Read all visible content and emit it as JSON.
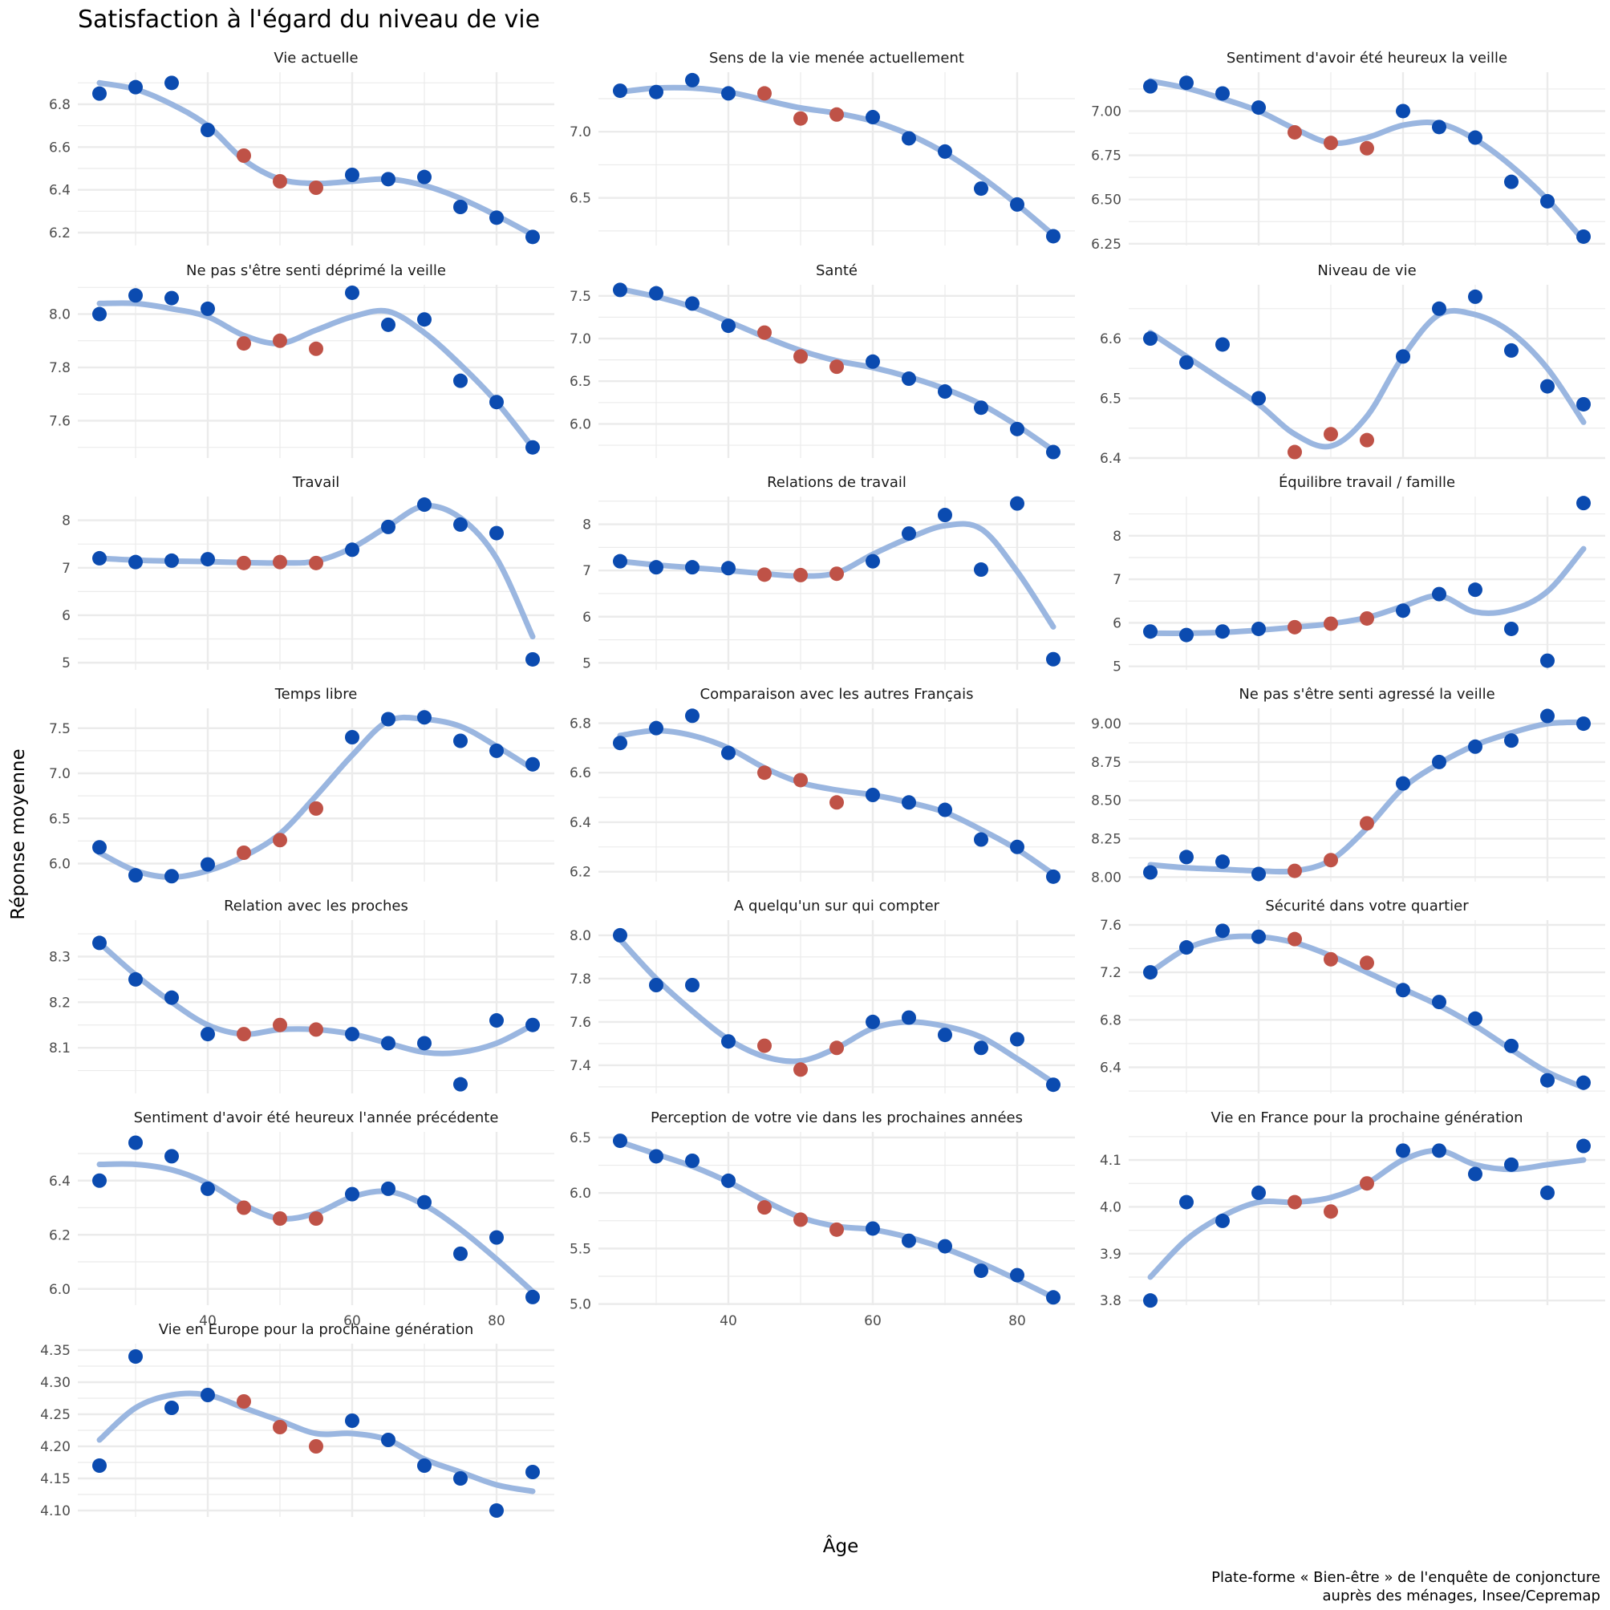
{
  "title": "Satisfaction à l'égard du niveau de vie",
  "caption_lines": [
    "Plate-forme « Bien-être » de l'enquête de conjoncture",
    "auprès des ménages, Insee/Cepremap"
  ],
  "colors": {
    "point_default": "#0B4BB0",
    "point_highlight": "#BF5247",
    "smooth": "#9AB6E0",
    "grid": "#EBEBEB"
  },
  "chart_data": {
    "type": "scatter",
    "xlabel": "Âge",
    "ylabel": "Réponse moyenne",
    "x": [
      25,
      30,
      35,
      40,
      45,
      50,
      55,
      60,
      65,
      70,
      75,
      80,
      85
    ],
    "xlim": [
      22,
      88
    ],
    "x_ticks": [
      40,
      60,
      80
    ],
    "x_tick_labels": [
      "40",
      "60",
      "80"
    ],
    "highlight_x": [
      45,
      50,
      55
    ],
    "grid": true,
    "panels": [
      {
        "title": "Vie actuelle",
        "values": [
          6.85,
          6.88,
          6.9,
          6.68,
          6.56,
          6.44,
          6.41,
          6.47,
          6.45,
          6.46,
          6.32,
          6.27,
          6.18
        ],
        "smooth": [
          6.9,
          6.87,
          6.8,
          6.7,
          6.54,
          6.45,
          6.43,
          6.44,
          6.45,
          6.42,
          6.36,
          6.28,
          6.19
        ],
        "ylim": [
          6.14,
          6.95
        ],
        "ticks": [
          6.2,
          6.4,
          6.6,
          6.8
        ],
        "tick_labels": [
          "6.2",
          "6.4",
          "6.6",
          "6.8"
        ]
      },
      {
        "title": "Sens de la vie menée actuellement",
        "values": [
          7.31,
          7.3,
          7.39,
          7.29,
          7.29,
          7.1,
          7.13,
          7.11,
          6.95,
          6.85,
          6.57,
          6.45,
          6.21
        ],
        "smooth": [
          7.3,
          7.33,
          7.33,
          7.3,
          7.24,
          7.18,
          7.14,
          7.08,
          6.98,
          6.84,
          6.66,
          6.45,
          6.22
        ],
        "ylim": [
          6.14,
          7.45
        ],
        "ticks": [
          6.5,
          7.0
        ],
        "tick_labels": [
          "6.5",
          "7.0"
        ]
      },
      {
        "title": "Sentiment d'avoir été heureux la veille",
        "values": [
          7.14,
          7.16,
          7.1,
          7.02,
          6.88,
          6.82,
          6.79,
          7.0,
          6.91,
          6.85,
          6.6,
          6.49,
          6.29
        ],
        "smooth": [
          7.17,
          7.13,
          7.07,
          7.0,
          6.9,
          6.82,
          6.85,
          6.92,
          6.93,
          6.84,
          6.69,
          6.5,
          6.27
        ],
        "ylim": [
          6.24,
          7.22
        ],
        "ticks": [
          6.25,
          6.5,
          6.75,
          7.0
        ],
        "tick_labels": [
          "6.25",
          "6.50",
          "6.75",
          "7.00"
        ]
      },
      {
        "title": "Ne pas s'être senti déprimé la veille",
        "values": [
          8.0,
          8.07,
          8.06,
          8.02,
          7.89,
          7.9,
          7.87,
          8.08,
          7.96,
          7.98,
          7.75,
          7.67,
          7.5
        ],
        "smooth": [
          8.04,
          8.04,
          8.02,
          7.99,
          7.92,
          7.89,
          7.94,
          7.99,
          8.01,
          7.93,
          7.81,
          7.67,
          7.5
        ],
        "ylim": [
          7.46,
          8.11
        ],
        "ticks": [
          7.6,
          7.8,
          8.0
        ],
        "tick_labels": [
          "7.6",
          "7.8",
          "8.0"
        ]
      },
      {
        "title": "Santé",
        "values": [
          7.57,
          7.53,
          7.41,
          7.15,
          7.07,
          6.79,
          6.67,
          6.73,
          6.53,
          6.38,
          6.19,
          5.94,
          5.67
        ],
        "smooth": [
          7.58,
          7.49,
          7.37,
          7.2,
          7.02,
          6.86,
          6.74,
          6.66,
          6.55,
          6.41,
          6.23,
          5.98,
          5.69
        ],
        "ylim": [
          5.6,
          7.63
        ],
        "ticks": [
          6.0,
          6.5,
          7.0,
          7.5
        ],
        "tick_labels": [
          "6.0",
          "6.5",
          "7.0",
          "7.5"
        ]
      },
      {
        "title": "Niveau de vie",
        "values": [
          6.6,
          6.56,
          6.59,
          6.5,
          6.41,
          6.44,
          6.43,
          6.57,
          6.65,
          6.67,
          6.58,
          6.52,
          6.49
        ],
        "smooth": [
          6.61,
          6.57,
          6.53,
          6.49,
          6.44,
          6.42,
          6.47,
          6.57,
          6.64,
          6.64,
          6.61,
          6.55,
          6.46
        ],
        "ylim": [
          6.4,
          6.69
        ],
        "ticks": [
          6.4,
          6.5,
          6.6
        ],
        "tick_labels": [
          "6.4",
          "6.5",
          "6.6"
        ]
      },
      {
        "title": "Travail",
        "values": [
          7.2,
          7.12,
          7.15,
          7.18,
          7.1,
          7.12,
          7.1,
          7.38,
          7.86,
          8.33,
          7.91,
          7.73,
          5.07
        ],
        "smooth": [
          7.2,
          7.16,
          7.14,
          7.13,
          7.11,
          7.1,
          7.14,
          7.42,
          7.88,
          8.3,
          8.05,
          7.2,
          5.55
        ],
        "ylim": [
          4.85,
          8.5
        ],
        "ticks": [
          5,
          6,
          7,
          8
        ],
        "tick_labels": [
          "5",
          "6",
          "7",
          "8"
        ]
      },
      {
        "title": "Relations de travail",
        "values": [
          7.2,
          7.07,
          7.07,
          7.05,
          6.91,
          6.9,
          6.93,
          7.2,
          7.8,
          8.2,
          7.02,
          8.45,
          5.08
        ],
        "smooth": [
          7.2,
          7.12,
          7.06,
          7.0,
          6.93,
          6.88,
          6.95,
          7.35,
          7.7,
          7.97,
          7.9,
          6.98,
          5.78
        ],
        "ylim": [
          4.85,
          8.6
        ],
        "ticks": [
          5,
          6,
          7,
          8
        ],
        "tick_labels": [
          "5",
          "6",
          "7",
          "8"
        ]
      },
      {
        "title": "Équilibre travail / famille",
        "values": [
          5.8,
          5.72,
          5.8,
          5.86,
          5.9,
          5.98,
          6.1,
          6.28,
          6.66,
          6.76,
          5.86,
          5.13,
          8.75
        ],
        "smooth": [
          5.76,
          5.76,
          5.78,
          5.83,
          5.9,
          5.98,
          6.12,
          6.38,
          6.62,
          6.25,
          6.3,
          6.72,
          7.7
        ],
        "ylim": [
          4.92,
          8.9
        ],
        "ticks": [
          5,
          6,
          7,
          8
        ],
        "tick_labels": [
          "5",
          "6",
          "7",
          "8"
        ]
      },
      {
        "title": "Temps libre",
        "values": [
          6.18,
          5.87,
          5.86,
          5.99,
          6.12,
          6.26,
          6.61,
          7.4,
          7.6,
          7.62,
          7.36,
          7.25,
          7.1
        ],
        "smooth": [
          6.12,
          5.92,
          5.85,
          5.92,
          6.08,
          6.33,
          6.75,
          7.2,
          7.58,
          7.6,
          7.52,
          7.3,
          7.05
        ],
        "ylim": [
          5.8,
          7.72
        ],
        "ticks": [
          6.0,
          6.5,
          7.0,
          7.5
        ],
        "tick_labels": [
          "6.0",
          "6.5",
          "7.0",
          "7.5"
        ]
      },
      {
        "title": "Comparaison avec les autres Français",
        "values": [
          6.72,
          6.78,
          6.83,
          6.68,
          6.6,
          6.57,
          6.48,
          6.51,
          6.48,
          6.45,
          6.33,
          6.3,
          6.18
        ],
        "smooth": [
          6.75,
          6.77,
          6.75,
          6.7,
          6.62,
          6.56,
          6.53,
          6.51,
          6.48,
          6.44,
          6.37,
          6.29,
          6.19
        ],
        "ylim": [
          6.16,
          6.86
        ],
        "ticks": [
          6.2,
          6.4,
          6.6,
          6.8
        ],
        "tick_labels": [
          "6.2",
          "6.4",
          "6.6",
          "6.8"
        ]
      },
      {
        "title": "Ne pas s'être senti agressé la veille",
        "values": [
          8.03,
          8.13,
          8.1,
          8.02,
          8.04,
          8.11,
          8.35,
          8.61,
          8.75,
          8.85,
          8.89,
          9.05,
          9.0
        ],
        "smooth": [
          8.08,
          8.06,
          8.05,
          8.04,
          8.04,
          8.11,
          8.32,
          8.58,
          8.74,
          8.86,
          8.94,
          9.0,
          9.01
        ],
        "ylim": [
          7.97,
          9.1
        ],
        "ticks": [
          8.0,
          8.25,
          8.5,
          8.75,
          9.0
        ],
        "tick_labels": [
          "8.00",
          "8.25",
          "8.50",
          "8.75",
          "9.00"
        ]
      },
      {
        "title": "Relation avec les proches",
        "values": [
          8.33,
          8.25,
          8.21,
          8.13,
          8.13,
          8.15,
          8.14,
          8.13,
          8.11,
          8.11,
          8.02,
          8.16,
          8.15
        ],
        "smooth": [
          8.33,
          8.26,
          8.2,
          8.15,
          8.13,
          8.14,
          8.14,
          8.13,
          8.11,
          8.09,
          8.09,
          8.11,
          8.15
        ],
        "ylim": [
          8.0,
          8.38
        ],
        "ticks": [
          8.1,
          8.2,
          8.3
        ],
        "tick_labels": [
          "8.1",
          "8.2",
          "8.3"
        ]
      },
      {
        "title": "A quelqu'un sur qui compter",
        "values": [
          8.0,
          7.77,
          7.77,
          7.51,
          7.49,
          7.38,
          7.48,
          7.6,
          7.62,
          7.54,
          7.48,
          7.52,
          7.31
        ],
        "smooth": [
          7.98,
          7.8,
          7.65,
          7.52,
          7.44,
          7.42,
          7.48,
          7.57,
          7.6,
          7.58,
          7.53,
          7.43,
          7.32
        ],
        "ylim": [
          7.27,
          8.07
        ],
        "ticks": [
          7.4,
          7.6,
          7.8,
          8.0
        ],
        "tick_labels": [
          "7.4",
          "7.6",
          "7.8",
          "8.0"
        ]
      },
      {
        "title": "Sécurité dans votre quartier",
        "values": [
          7.2,
          7.41,
          7.55,
          7.5,
          7.48,
          7.31,
          7.28,
          7.05,
          6.95,
          6.81,
          6.58,
          6.29,
          6.27
        ],
        "smooth": [
          7.2,
          7.4,
          7.49,
          7.5,
          7.45,
          7.34,
          7.2,
          7.06,
          6.92,
          6.75,
          6.55,
          6.36,
          6.23
        ],
        "ylim": [
          6.18,
          7.64
        ],
        "ticks": [
          6.4,
          6.8,
          7.2,
          7.6
        ],
        "tick_labels": [
          "6.4",
          "6.8",
          "7.2",
          "7.6"
        ]
      },
      {
        "title": "Sentiment d'avoir été heureux l'année précédente",
        "values": [
          6.4,
          6.54,
          6.49,
          6.37,
          6.3,
          6.26,
          6.26,
          6.35,
          6.37,
          6.32,
          6.13,
          6.19,
          5.97
        ],
        "smooth": [
          6.46,
          6.46,
          6.44,
          6.39,
          6.31,
          6.26,
          6.28,
          6.34,
          6.36,
          6.31,
          6.22,
          6.11,
          5.99
        ],
        "ylim": [
          5.94,
          6.58
        ],
        "ticks": [
          6.0,
          6.2,
          6.4
        ],
        "tick_labels": [
          "6.0",
          "6.2",
          "6.4"
        ]
      },
      {
        "title": "Perception de votre vie dans les prochaines années",
        "values": [
          6.47,
          6.33,
          6.29,
          6.11,
          5.87,
          5.76,
          5.67,
          5.68,
          5.57,
          5.52,
          5.3,
          5.26,
          5.06
        ],
        "smooth": [
          6.46,
          6.35,
          6.24,
          6.1,
          5.93,
          5.78,
          5.7,
          5.67,
          5.6,
          5.5,
          5.37,
          5.22,
          5.06
        ],
        "ylim": [
          4.99,
          6.55
        ],
        "ticks": [
          5.0,
          5.5,
          6.0,
          6.5
        ],
        "tick_labels": [
          "5.0",
          "5.5",
          "6.0",
          "6.5"
        ]
      },
      {
        "title": "Vie en France pour la prochaine génération",
        "values": [
          3.8,
          4.01,
          3.97,
          4.03,
          4.01,
          3.99,
          4.05,
          4.12,
          4.12,
          4.07,
          4.09,
          4.03,
          4.13
        ],
        "smooth": [
          3.85,
          3.93,
          3.98,
          4.01,
          4.01,
          4.02,
          4.05,
          4.1,
          4.12,
          4.09,
          4.08,
          4.09,
          4.1
        ],
        "ylim": [
          3.79,
          4.16
        ],
        "ticks": [
          3.8,
          3.9,
          4.0,
          4.1
        ],
        "tick_labels": [
          "3.8",
          "3.9",
          "4.0",
          "4.1"
        ]
      },
      {
        "title": "Vie en Europe pour la prochaine génération",
        "values": [
          4.17,
          4.34,
          4.26,
          4.28,
          4.27,
          4.23,
          4.2,
          4.24,
          4.21,
          4.17,
          4.15,
          4.1,
          4.16
        ],
        "smooth": [
          4.21,
          4.26,
          4.28,
          4.28,
          4.26,
          4.24,
          4.22,
          4.22,
          4.21,
          4.18,
          4.16,
          4.14,
          4.13
        ],
        "ylim": [
          4.09,
          4.36
        ],
        "ticks": [
          4.1,
          4.15,
          4.2,
          4.25,
          4.3,
          4.35
        ],
        "tick_labels": [
          "4.10",
          "4.15",
          "4.20",
          "4.25",
          "4.30",
          "4.35"
        ]
      }
    ]
  }
}
